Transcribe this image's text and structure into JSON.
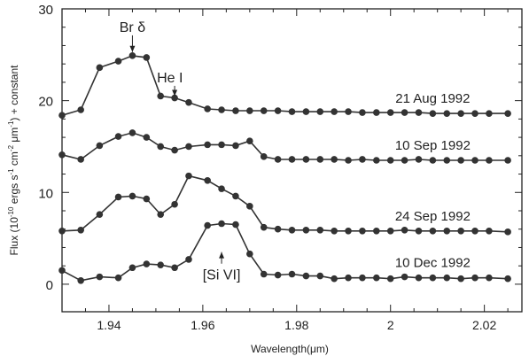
{
  "chart_data": {
    "type": "line",
    "xlabel": "Wavelength(μm)",
    "ylabel": "Flux (10^-10 ergs s^-1 cm^-2 μm^-1) + constant",
    "xlim": [
      1.93,
      2.028
    ],
    "ylim": [
      -3,
      30
    ],
    "x_ticks": [
      1.94,
      1.96,
      1.98,
      2.0,
      2.02
    ],
    "x_tick_labels": [
      "1.94",
      "1.96",
      "1.98",
      "2",
      "2.02"
    ],
    "y_ticks": [
      0,
      10,
      20,
      30
    ],
    "y_tick_labels": [
      "0",
      "10",
      "20",
      "30"
    ],
    "grid": false,
    "x": [
      1.93,
      1.934,
      1.938,
      1.942,
      1.945,
      1.948,
      1.951,
      1.954,
      1.957,
      1.961,
      1.964,
      1.967,
      1.97,
      1.973,
      1.976,
      1.979,
      1.982,
      1.985,
      1.988,
      1.991,
      1.994,
      1.997,
      2.0,
      2.003,
      2.006,
      2.009,
      2.012,
      2.015,
      2.018,
      2.021,
      2.025
    ],
    "series": [
      {
        "name": "21 Aug 1992",
        "values": [
          18.4,
          19.0,
          23.6,
          24.3,
          24.9,
          24.7,
          20.5,
          20.3,
          19.8,
          19.1,
          19.0,
          18.9,
          18.9,
          18.9,
          18.9,
          18.8,
          18.8,
          18.8,
          18.8,
          18.8,
          18.7,
          18.7,
          18.7,
          18.7,
          18.7,
          18.6,
          18.6,
          18.6,
          18.6,
          18.6,
          18.6
        ]
      },
      {
        "name": "10 Sep 1992",
        "values": [
          14.1,
          13.6,
          15.1,
          16.1,
          16.5,
          16.0,
          15.0,
          14.6,
          15.0,
          15.2,
          15.2,
          15.1,
          15.6,
          13.9,
          13.6,
          13.6,
          13.6,
          13.6,
          13.6,
          13.5,
          13.6,
          13.5,
          13.5,
          13.5,
          13.6,
          13.5,
          13.5,
          13.5,
          13.5,
          13.5,
          13.5
        ]
      },
      {
        "name": "24 Sep 1992",
        "values": [
          5.8,
          5.9,
          7.6,
          9.5,
          9.6,
          9.3,
          7.6,
          8.7,
          11.8,
          11.3,
          10.4,
          9.6,
          8.5,
          6.2,
          6.0,
          5.9,
          5.9,
          5.9,
          5.8,
          5.8,
          5.8,
          5.8,
          5.8,
          5.9,
          5.8,
          5.8,
          5.8,
          5.8,
          5.8,
          5.8,
          5.7
        ]
      },
      {
        "name": "10 Dec 1992",
        "values": [
          1.5,
          0.4,
          0.8,
          0.7,
          1.8,
          2.2,
          2.1,
          1.8,
          2.7,
          6.4,
          6.6,
          6.5,
          3.3,
          1.1,
          1.0,
          1.1,
          0.9,
          0.9,
          0.6,
          0.7,
          0.7,
          0.7,
          0.6,
          0.8,
          0.7,
          0.7,
          0.7,
          0.6,
          0.7,
          0.7,
          0.6
        ]
      }
    ],
    "annotations": [
      {
        "text": "Br δ",
        "x": 1.945,
        "y": 27.5,
        "arrow_to": [
          1.945,
          25.3
        ]
      },
      {
        "text": "He I",
        "x": 1.953,
        "y": 22.0,
        "arrow_to": [
          1.954,
          20.5
        ]
      },
      {
        "text": "[Si VI]",
        "x": 1.964,
        "y": 0.5,
        "arrow_to": [
          1.964,
          3.5
        ]
      }
    ]
  }
}
